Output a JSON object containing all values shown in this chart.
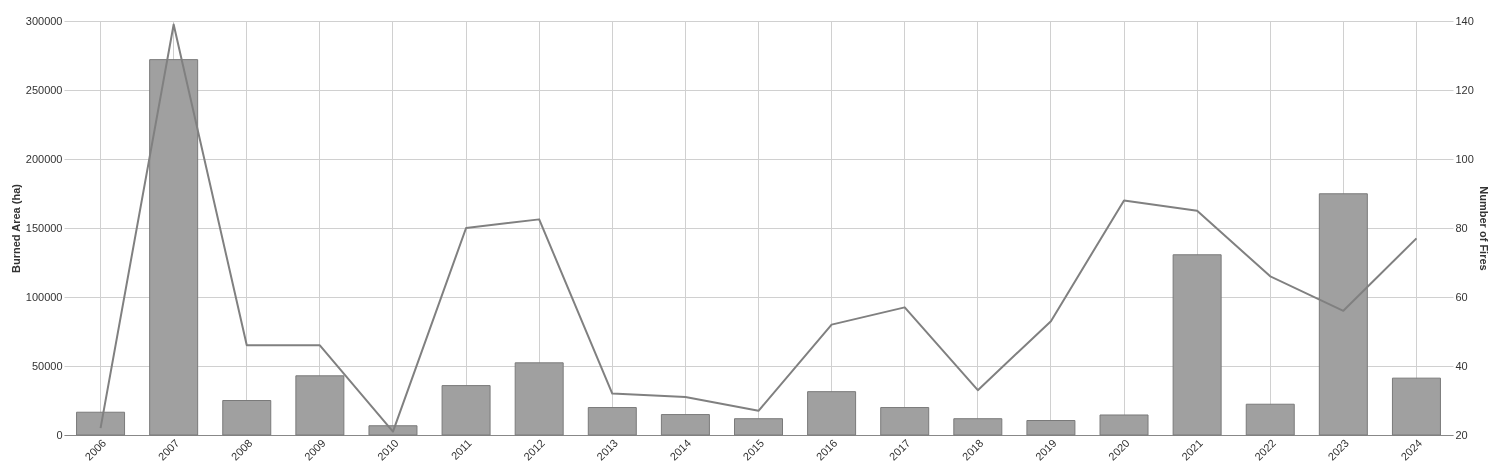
{
  "chart_data": {
    "type": "bar",
    "ylabel": "Burned Area (ha)",
    "y2label": "Number of Fires",
    "categories": [
      "2006",
      "2007",
      "2008",
      "2009",
      "2010",
      "2011",
      "2012",
      "2013",
      "2014",
      "2015",
      "2016",
      "2017",
      "2018",
      "2019",
      "2020",
      "2021",
      "2022",
      "2023",
      "2024"
    ],
    "series": [
      {
        "color": "#a0a0a0",
        "values": [
          16500,
          272000,
          25000,
          42900,
          6700,
          35800,
          52300,
          19900,
          14800,
          11800,
          31400,
          19900,
          11800,
          10500,
          14500,
          130600,
          22300,
          174800,
          41200
        ]
      },
      {
        "type": "line",
        "axis": "y2",
        "color": "#808080",
        "values": [
          22,
          139,
          46,
          46,
          21,
          80,
          82.5,
          32,
          31,
          27,
          52,
          57,
          33,
          53,
          88,
          85,
          66,
          56,
          77
        ]
      }
    ],
    "ylim": [
      0,
      300000
    ],
    "yticks": [
      0,
      50000,
      100000,
      150000,
      200000,
      250000,
      300000
    ],
    "y2lim": [
      20,
      140
    ],
    "y2ticks": [
      20,
      40,
      60,
      80,
      100,
      120,
      140
    ],
    "grid": true,
    "marker": "none",
    "line_style": "solid"
  }
}
